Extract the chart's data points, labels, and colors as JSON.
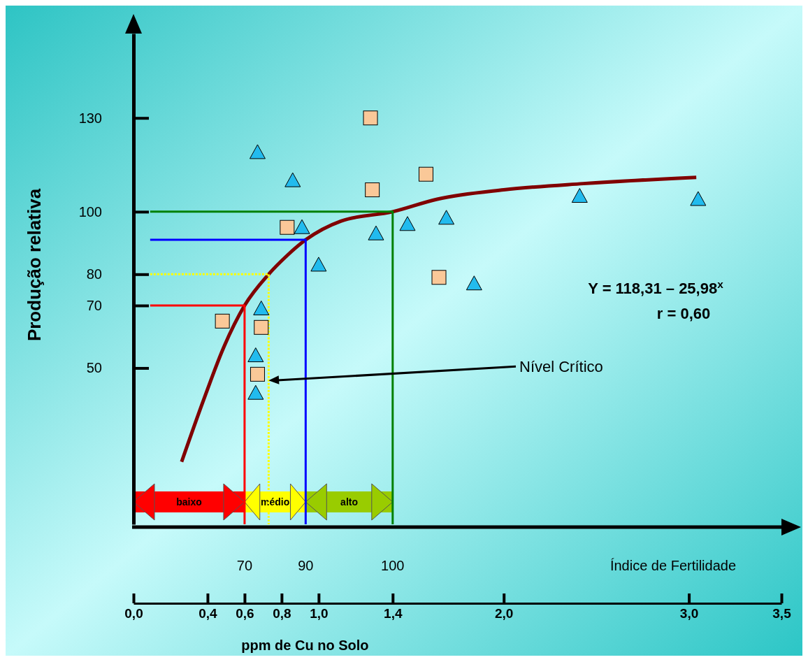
{
  "chart_data": {
    "type": "scatter",
    "xlabel": "ppm de Cu no Solo",
    "ylabel": "Produção relativa",
    "xlim": [
      0,
      3.5
    ],
    "xticks": [
      {
        "value": 0,
        "label": "0,0"
      },
      {
        "value": 0.4,
        "label": "0,4"
      },
      {
        "value": 0.6,
        "label": "0,6"
      },
      {
        "value": 0.8,
        "label": "0,8"
      },
      {
        "value": 1.0,
        "label": "1,0"
      },
      {
        "value": 1.4,
        "label": "1,4"
      },
      {
        "value": 2.0,
        "label": "2,0"
      },
      {
        "value": 3.0,
        "label": "3,0"
      },
      {
        "value": 3.5,
        "label": "3,5"
      }
    ],
    "ylim": [
      0,
      157
    ],
    "yticks": [
      50,
      70,
      80,
      100,
      130
    ],
    "grid": false,
    "series": [
      {
        "type": "line",
        "color": "#800000",
        "line_style": "solid",
        "marker": "none",
        "x": [
          0.26,
          0.38,
          0.49,
          0.6,
          0.73,
          0.83,
          0.93,
          1.12,
          1.4,
          1.64,
          2.0,
          2.43,
          3.04
        ],
        "values": [
          20,
          40,
          57,
          70,
          80,
          86,
          91,
          97,
          100,
          104,
          107,
          109,
          111
        ]
      },
      {
        "type": "line",
        "color": "#ff0000",
        "line_style": "solid",
        "marker": "none",
        "x": [
          0.09,
          0.6,
          0.6
        ],
        "values": [
          70,
          70,
          0
        ]
      },
      {
        "type": "line",
        "color": "#ffff00",
        "line_style": "dotted",
        "marker": "none",
        "x": [
          0.09,
          0.73,
          0.73
        ],
        "values": [
          80,
          80,
          0
        ]
      },
      {
        "type": "line",
        "color": "#0000ff",
        "line_style": "solid",
        "marker": "none",
        "x": [
          0.09,
          0.93,
          0.93
        ],
        "values": [
          91,
          91,
          0
        ]
      },
      {
        "type": "line",
        "color": "#008000",
        "line_style": "solid",
        "marker": "none",
        "x": [
          0.09,
          1.4,
          1.4
        ],
        "values": [
          100,
          100,
          0
        ]
      },
      {
        "type": "scatter",
        "color": "#fac898",
        "marker": "square",
        "x": [
          0.48,
          0.67,
          0.69,
          0.83,
          1.28,
          1.29,
          1.58,
          1.65
        ],
        "values": [
          65,
          48,
          63,
          95,
          130,
          107,
          112,
          79
        ]
      },
      {
        "type": "scatter",
        "color": "#22bbee",
        "marker": "triangle",
        "x": [
          0.67,
          0.86,
          0.91,
          1.0,
          1.31,
          1.48,
          1.69,
          1.84,
          0.69,
          0.66,
          0.66,
          2.41,
          3.05
        ],
        "values": [
          119,
          110,
          95,
          83,
          93,
          96,
          98,
          77,
          69,
          54,
          42,
          105,
          104
        ]
      }
    ],
    "bands": [
      {
        "axis": "x",
        "from": 0,
        "to": 0.6,
        "label": "baixo",
        "color": "#ff0000"
      },
      {
        "axis": "x",
        "from": 0.6,
        "to": 0.93,
        "label": "médio",
        "color": "#ffff00"
      },
      {
        "axis": "x",
        "from": 0.93,
        "to": 1.4,
        "label": "alto",
        "color": "#99cc00"
      }
    ],
    "annotations": [
      "Y = 118,31 – 25,98$^{x}$",
      "r = 0,60",
      "Índice de Fertilidade",
      "70",
      "90",
      "100",
      {
        "text": "Nível Crítico",
        "x": 0.73,
        "y": 46
      }
    ]
  }
}
